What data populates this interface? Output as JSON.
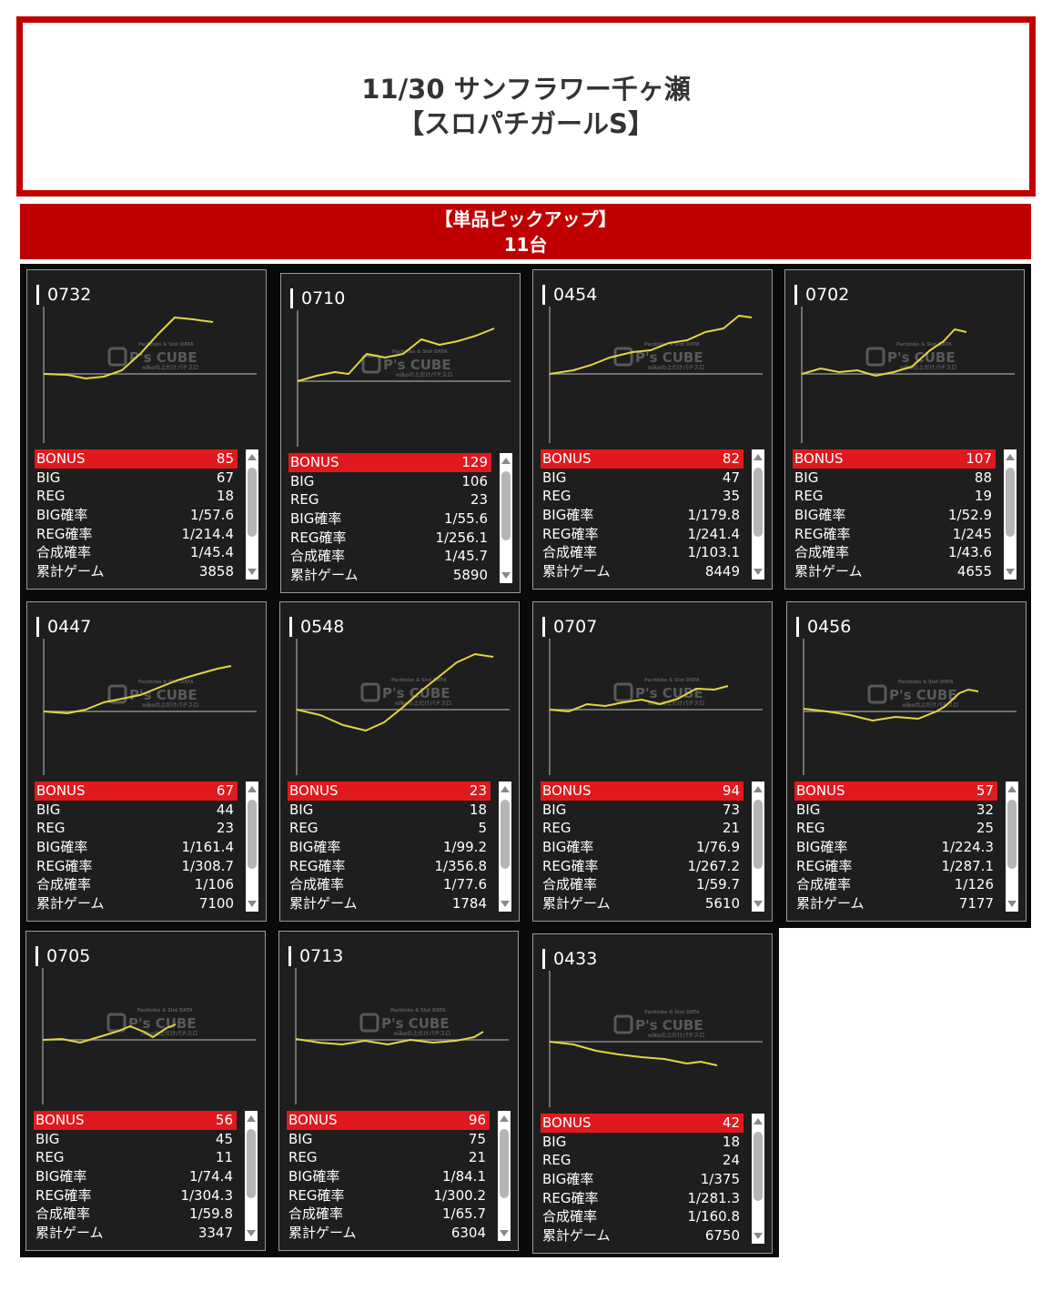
{
  "header": {
    "title_line1": "11/30 サンフラワー千ヶ瀬",
    "title_line2": "【スロパチガールS】"
  },
  "banner": {
    "line1": "【単品ピックアップ】",
    "line2": "11台"
  },
  "watermark": {
    "brand": "P's CUBE",
    "small_top": "Pachinko & Slot DATA",
    "small_bottom": "nikoの上だけパチスロ"
  },
  "stat_labels": {
    "bonus": "BONUS",
    "big": "BIG",
    "reg": "REG",
    "big_prob": "BIG確率",
    "reg_prob": "REG確率",
    "combined_prob": "合成確率",
    "total_games": "累計ゲーム"
  },
  "colors": {
    "accent_red": "#c00000",
    "bonus_red": "#e0191e",
    "graph_line": "#e6d443",
    "card_bg": "#1e1e1e"
  },
  "machines": [
    {
      "number": "0732",
      "bonus": "85",
      "big": "67",
      "reg": "18",
      "big_prob": "1/57.6",
      "reg_prob": "1/214.4",
      "combined_prob": "1/45.4",
      "total_games": "3858"
    },
    {
      "number": "0710",
      "bonus": "129",
      "big": "106",
      "reg": "23",
      "big_prob": "1/55.6",
      "reg_prob": "1/256.1",
      "combined_prob": "1/45.7",
      "total_games": "5890"
    },
    {
      "number": "0454",
      "bonus": "82",
      "big": "47",
      "reg": "35",
      "big_prob": "1/179.8",
      "reg_prob": "1/241.4",
      "combined_prob": "1/103.1",
      "total_games": "8449"
    },
    {
      "number": "0702",
      "bonus": "107",
      "big": "88",
      "reg": "19",
      "big_prob": "1/52.9",
      "reg_prob": "1/245",
      "combined_prob": "1/43.6",
      "total_games": "4655"
    },
    {
      "number": "0447",
      "bonus": "67",
      "big": "44",
      "reg": "23",
      "big_prob": "1/161.4",
      "reg_prob": "1/308.7",
      "combined_prob": "1/106",
      "total_games": "7100"
    },
    {
      "number": "0548",
      "bonus": "23",
      "big": "18",
      "reg": "5",
      "big_prob": "1/99.2",
      "reg_prob": "1/356.8",
      "combined_prob": "1/77.6",
      "total_games": "1784"
    },
    {
      "number": "0707",
      "bonus": "94",
      "big": "73",
      "reg": "21",
      "big_prob": "1/76.9",
      "reg_prob": "1/267.2",
      "combined_prob": "1/59.7",
      "total_games": "5610"
    },
    {
      "number": "0456",
      "bonus": "57",
      "big": "32",
      "reg": "25",
      "big_prob": "1/224.3",
      "reg_prob": "1/287.1",
      "combined_prob": "1/126",
      "total_games": "7177"
    },
    {
      "number": "0705",
      "bonus": "56",
      "big": "45",
      "reg": "11",
      "big_prob": "1/74.4",
      "reg_prob": "1/304.3",
      "combined_prob": "1/59.8",
      "total_games": "3347"
    },
    {
      "number": "0713",
      "bonus": "96",
      "big": "75",
      "reg": "21",
      "big_prob": "1/84.1",
      "reg_prob": "1/300.2",
      "combined_prob": "1/65.7",
      "total_games": "6304"
    },
    {
      "number": "0433",
      "bonus": "42",
      "big": "18",
      "reg": "24",
      "big_prob": "1/375",
      "reg_prob": "1/281.3",
      "combined_prob": "1/160.8",
      "total_games": "6750"
    }
  ]
}
